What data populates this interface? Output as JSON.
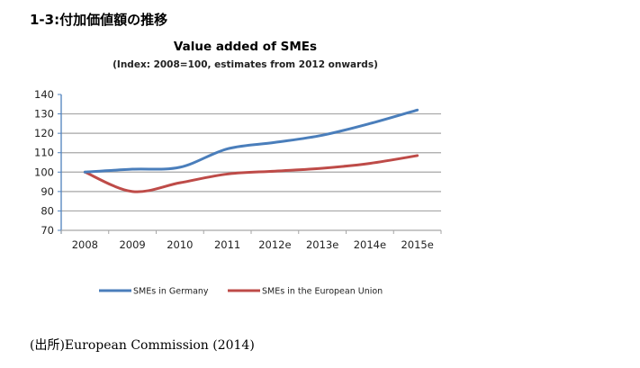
{
  "page": {
    "heading": "1-3:付加価値額の推移",
    "source": "(出所)European Commission (2014)"
  },
  "chart_data": {
    "type": "line",
    "title": "Value added of SMEs",
    "subtitle": "(Index: 2008=100, estimates from 2012 onwards)",
    "xlabel": "",
    "ylabel": "",
    "categories": [
      "2008",
      "2009",
      "2010",
      "2011",
      "2012e",
      "2013e",
      "2014e",
      "2015e"
    ],
    "ylim": [
      70,
      140
    ],
    "yticks": [
      70,
      80,
      90,
      100,
      110,
      120,
      130,
      140
    ],
    "grid": true,
    "legend_position": "bottom",
    "series": [
      {
        "name": "SMEs in Germany",
        "color": "#4a7ebb",
        "values": [
          100,
          101.5,
          102.5,
          112,
          115.3,
          119,
          125,
          132
        ]
      },
      {
        "name": "SMEs in the European Union",
        "color": "#be4b48",
        "values": [
          100,
          90,
          94.5,
          99,
          100.5,
          102,
          104.5,
          108.5
        ]
      }
    ],
    "smooth": true
  }
}
